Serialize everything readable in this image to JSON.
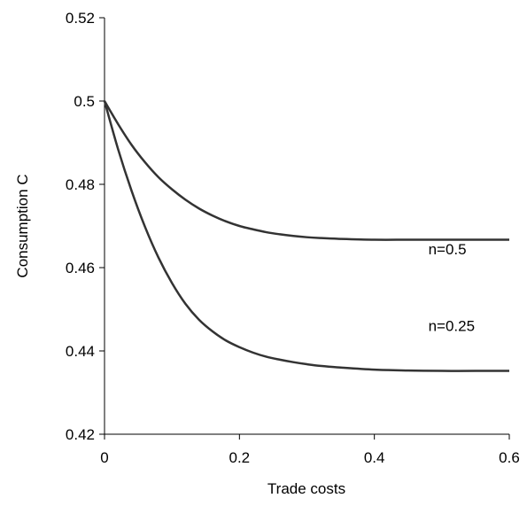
{
  "chart_data": {
    "type": "line",
    "title": "",
    "xlabel": "Trade costs",
    "ylabel": "Consumption C",
    "xlim": [
      0,
      0.6
    ],
    "ylim": [
      0.42,
      0.52
    ],
    "x_ticks": [
      "0",
      "0.2",
      "0.4",
      "0.6"
    ],
    "y_ticks": [
      "0.42",
      "0.44",
      "0.46",
      "0.48",
      "0.5",
      "0.52"
    ],
    "grid": false,
    "legend": "none",
    "series": [
      {
        "name": "n=0.5",
        "x": [
          0,
          0.02,
          0.04,
          0.06,
          0.08,
          0.1,
          0.12,
          0.14,
          0.16,
          0.18,
          0.2,
          0.22,
          0.24,
          0.26,
          0.28,
          0.3,
          0.32,
          0.35,
          0.4,
          0.45,
          0.5,
          0.55,
          0.6
        ],
        "y": [
          0.5,
          0.4945,
          0.4895,
          0.4853,
          0.4817,
          0.4788,
          0.4763,
          0.4742,
          0.4725,
          0.4711,
          0.47,
          0.4692,
          0.4685,
          0.468,
          0.4676,
          0.4673,
          0.4671,
          0.4669,
          0.4667,
          0.4667,
          0.4667,
          0.4667,
          0.4667
        ]
      },
      {
        "name": "n=0.25",
        "x": [
          0,
          0.02,
          0.04,
          0.06,
          0.08,
          0.1,
          0.12,
          0.14,
          0.16,
          0.18,
          0.2,
          0.22,
          0.24,
          0.26,
          0.28,
          0.3,
          0.32,
          0.35,
          0.4,
          0.45,
          0.5,
          0.55,
          0.6
        ],
        "y": [
          0.5,
          0.4885,
          0.4785,
          0.4698,
          0.4624,
          0.4563,
          0.4513,
          0.4475,
          0.4447,
          0.4425,
          0.4409,
          0.4396,
          0.4386,
          0.4379,
          0.4373,
          0.4368,
          0.4364,
          0.436,
          0.4355,
          0.4353,
          0.4352,
          0.4352,
          0.4352
        ]
      }
    ],
    "annotations": [
      {
        "text": "n=0.5",
        "x": 0.48,
        "y": 0.4632
      },
      {
        "text": "n=0.25",
        "x": 0.48,
        "y": 0.4448
      }
    ]
  }
}
